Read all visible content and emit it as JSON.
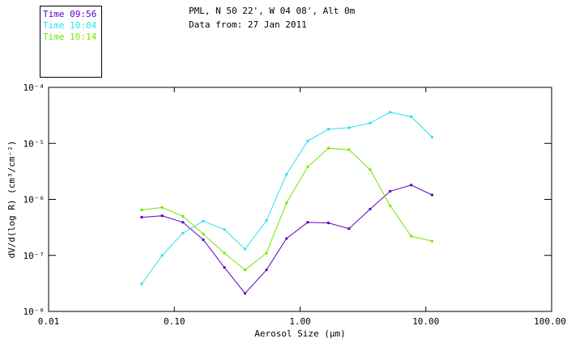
{
  "header": {
    "title": "PML, N 50 22', W 04 08', Alt 0m",
    "subtitle": "Data from: 27 Jan 2011"
  },
  "legend": {
    "items": [
      {
        "label": "Time 09:56",
        "color": "#6000C0"
      },
      {
        "label": "Time 10:04",
        "color": "#30DFEF"
      },
      {
        "label": "Time 10:14",
        "color": "#74E600"
      }
    ]
  },
  "chart_data": {
    "type": "line",
    "x_scale": "log",
    "y_scale": "log",
    "title": "PML, N 50 22', W 04 08', Alt 0m",
    "subtitle": "Data from: 27 Jan 2011",
    "xlabel": "Aerosol Size (μm)",
    "ylabel": "dV/d(log R) (cm³/cm⁻²)",
    "xlim": [
      0.01,
      100.0
    ],
    "ylim": [
      1e-08,
      0.0001
    ],
    "x_tick_values": [
      0.01,
      0.1,
      1.0,
      10.0,
      100.0
    ],
    "x_tick_labels": [
      "0.01",
      "0.10",
      "1.00",
      "10.00",
      "100.00"
    ],
    "y_tick_values": [
      0.0001,
      1e-05,
      1e-06,
      1e-07,
      1e-08
    ],
    "y_tick_labels": [
      "10⁻⁴",
      "10⁻⁵",
      "10⁻⁶",
      "10⁻⁷",
      "10⁻⁸"
    ],
    "grid": false,
    "marker": "square",
    "legend_position": "top-left-outside",
    "x_um": [
      0.055,
      0.08,
      0.117,
      0.17,
      0.25,
      0.365,
      0.54,
      0.78,
      1.15,
      1.68,
      2.45,
      3.6,
      5.2,
      7.65,
      11.2
    ],
    "series": [
      {
        "name": "Time 09:56",
        "color": "#6000C0",
        "values": [
          4.8e-07,
          5.1e-07,
          3.9e-07,
          1.9e-07,
          6.1e-08,
          2.1e-08,
          5.5e-08,
          2e-07,
          3.9e-07,
          3.8e-07,
          3e-07,
          6.7e-07,
          1.4e-06,
          1.8e-06,
          1.2e-06
        ]
      },
      {
        "name": "Time 10:04",
        "color": "#30DFEF",
        "values": [
          3.1e-08,
          1e-07,
          2.5e-07,
          4.1e-07,
          2.9e-07,
          1.3e-07,
          4.2e-07,
          2.8e-06,
          1.1e-05,
          1.8e-05,
          1.9e-05,
          2.3e-05,
          3.6e-05,
          3e-05,
          1.3e-05
        ]
      },
      {
        "name": "Time 10:14",
        "color": "#74E600",
        "values": [
          6.5e-07,
          7.2e-07,
          5e-07,
          2.4e-07,
          1.1e-07,
          5.5e-08,
          1.1e-07,
          8.7e-07,
          3.8e-06,
          8.2e-06,
          7.7e-06,
          3.4e-06,
          7.7e-07,
          2.2e-07,
          1.8e-07
        ]
      }
    ]
  }
}
